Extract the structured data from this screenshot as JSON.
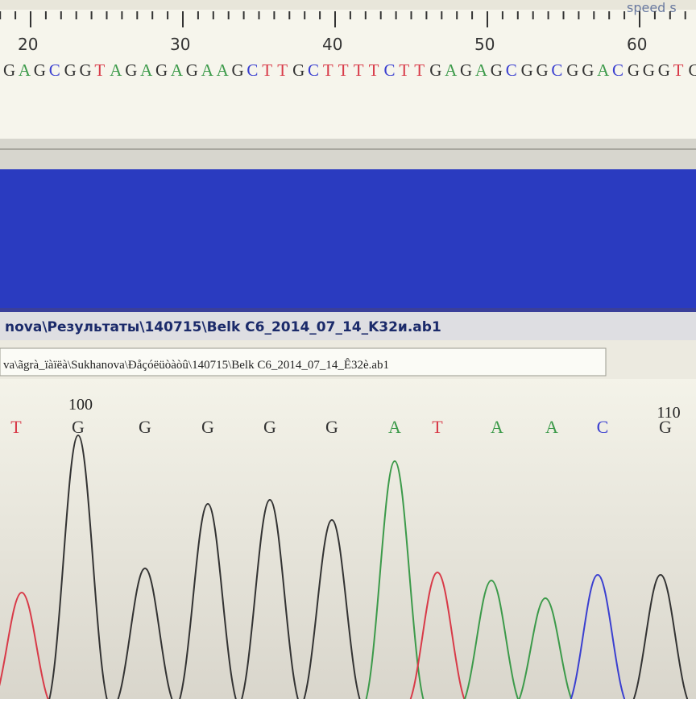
{
  "ruler": {
    "ticks": [
      "20",
      "30",
      "40",
      "50",
      "60"
    ]
  },
  "toolbar": {
    "speed_label": "speed s"
  },
  "sequence": {
    "text": "GAGCGGTAGAGAGAAGCTTGCTTTTCTTGAGAGCGGCGGACGGGTG",
    "base_colors": {
      "A": "#3c9a4a",
      "C": "#3a3fd0",
      "G": "#333333",
      "T": "#d83a48"
    }
  },
  "path_bar": {
    "title": "nova\\Результаты\\140715\\Belk C6_2014_07_14_K32и.ab1"
  },
  "path_box": {
    "text": "va\\ãgrà_ïàïëà\\Sukhanova\\Đåçóëüòàòû\\140715\\Belk C6_2014_07_14_Ê32è.ab1"
  },
  "chromatogram": {
    "position_labels": [
      "100",
      "110"
    ],
    "bases": [
      "T",
      "G",
      "G",
      "G",
      "G",
      "G",
      "A",
      "T",
      "A",
      "A",
      "C",
      "G"
    ]
  }
}
